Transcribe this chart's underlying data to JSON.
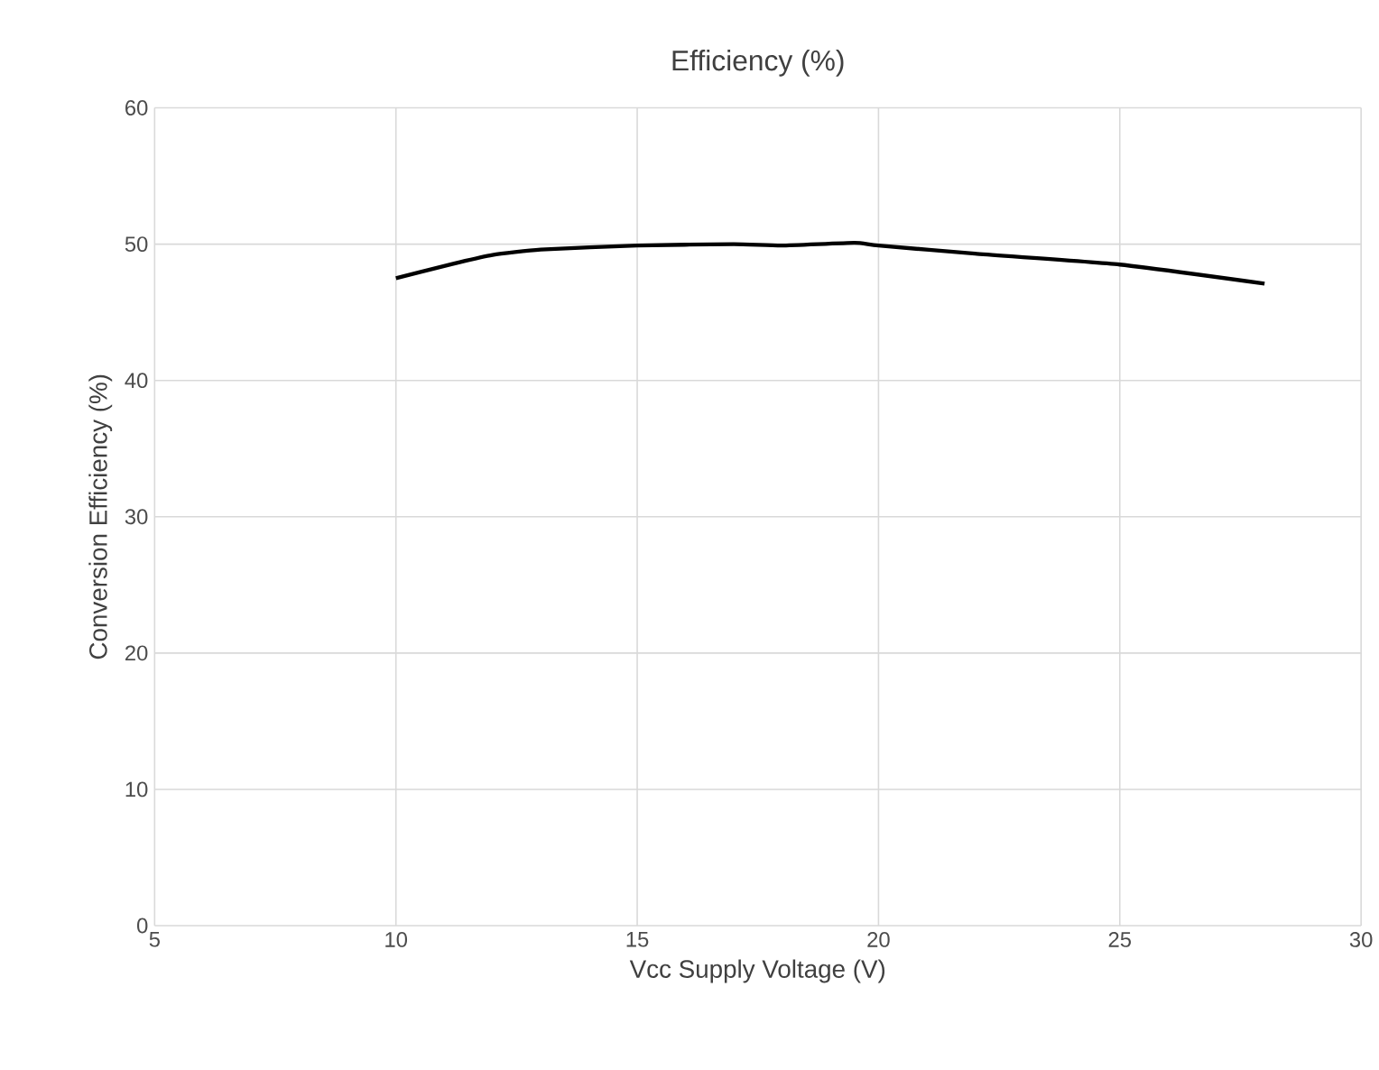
{
  "chart_data": {
    "type": "line",
    "title": "Efficiency (%)",
    "xlabel": "Vcc Supply Voltage (V)",
    "ylabel": "Conversion Efficiency (%)",
    "series": [
      {
        "color": "#000000",
        "x": [
          10,
          11,
          12,
          13,
          15,
          17,
          18,
          19.5,
          20,
          22,
          25,
          28
        ],
        "values": [
          47.5,
          48.4,
          49.2,
          49.6,
          49.9,
          50,
          49.9,
          50.1,
          49.9,
          49.3,
          48.5,
          47.1
        ]
      }
    ],
    "xlim": [
      5,
      30
    ],
    "ylim": [
      0,
      60
    ],
    "xticks": [
      5,
      10,
      15,
      20,
      25,
      30
    ],
    "yticks": [
      0,
      10,
      20,
      30,
      40,
      50,
      60
    ],
    "grid": true,
    "marker": "none",
    "line_style": "solid"
  }
}
